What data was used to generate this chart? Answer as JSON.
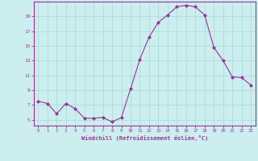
{
  "x": [
    0,
    1,
    2,
    3,
    4,
    5,
    6,
    7,
    8,
    9,
    10,
    11,
    12,
    13,
    14,
    15,
    16,
    17,
    18,
    19,
    20,
    21,
    22,
    23
  ],
  "y": [
    7.5,
    7.2,
    5.8,
    7.2,
    6.5,
    5.2,
    5.2,
    5.3,
    4.7,
    5.3,
    9.2,
    13.2,
    16.2,
    18.2,
    19.2,
    20.3,
    20.5,
    20.3,
    19.2,
    14.8,
    13.0,
    10.8,
    10.7,
    9.7
  ],
  "line_color": "#993399",
  "marker": "D",
  "marker_size": 2.0,
  "bg_color": "#cceeee",
  "grid_color": "#aadddd",
  "xlabel": "Windchill (Refroidissement éolien,°C)",
  "xlabel_color": "#993399",
  "tick_color": "#993399",
  "axis_color": "#993399",
  "yticks": [
    5,
    7,
    9,
    11,
    13,
    15,
    17,
    19
  ],
  "xticks": [
    0,
    1,
    2,
    3,
    4,
    5,
    6,
    7,
    8,
    9,
    10,
    11,
    12,
    13,
    14,
    15,
    16,
    17,
    18,
    19,
    20,
    21,
    22,
    23
  ],
  "ylim": [
    4.2,
    21.0
  ],
  "xlim": [
    -0.5,
    23.5
  ]
}
